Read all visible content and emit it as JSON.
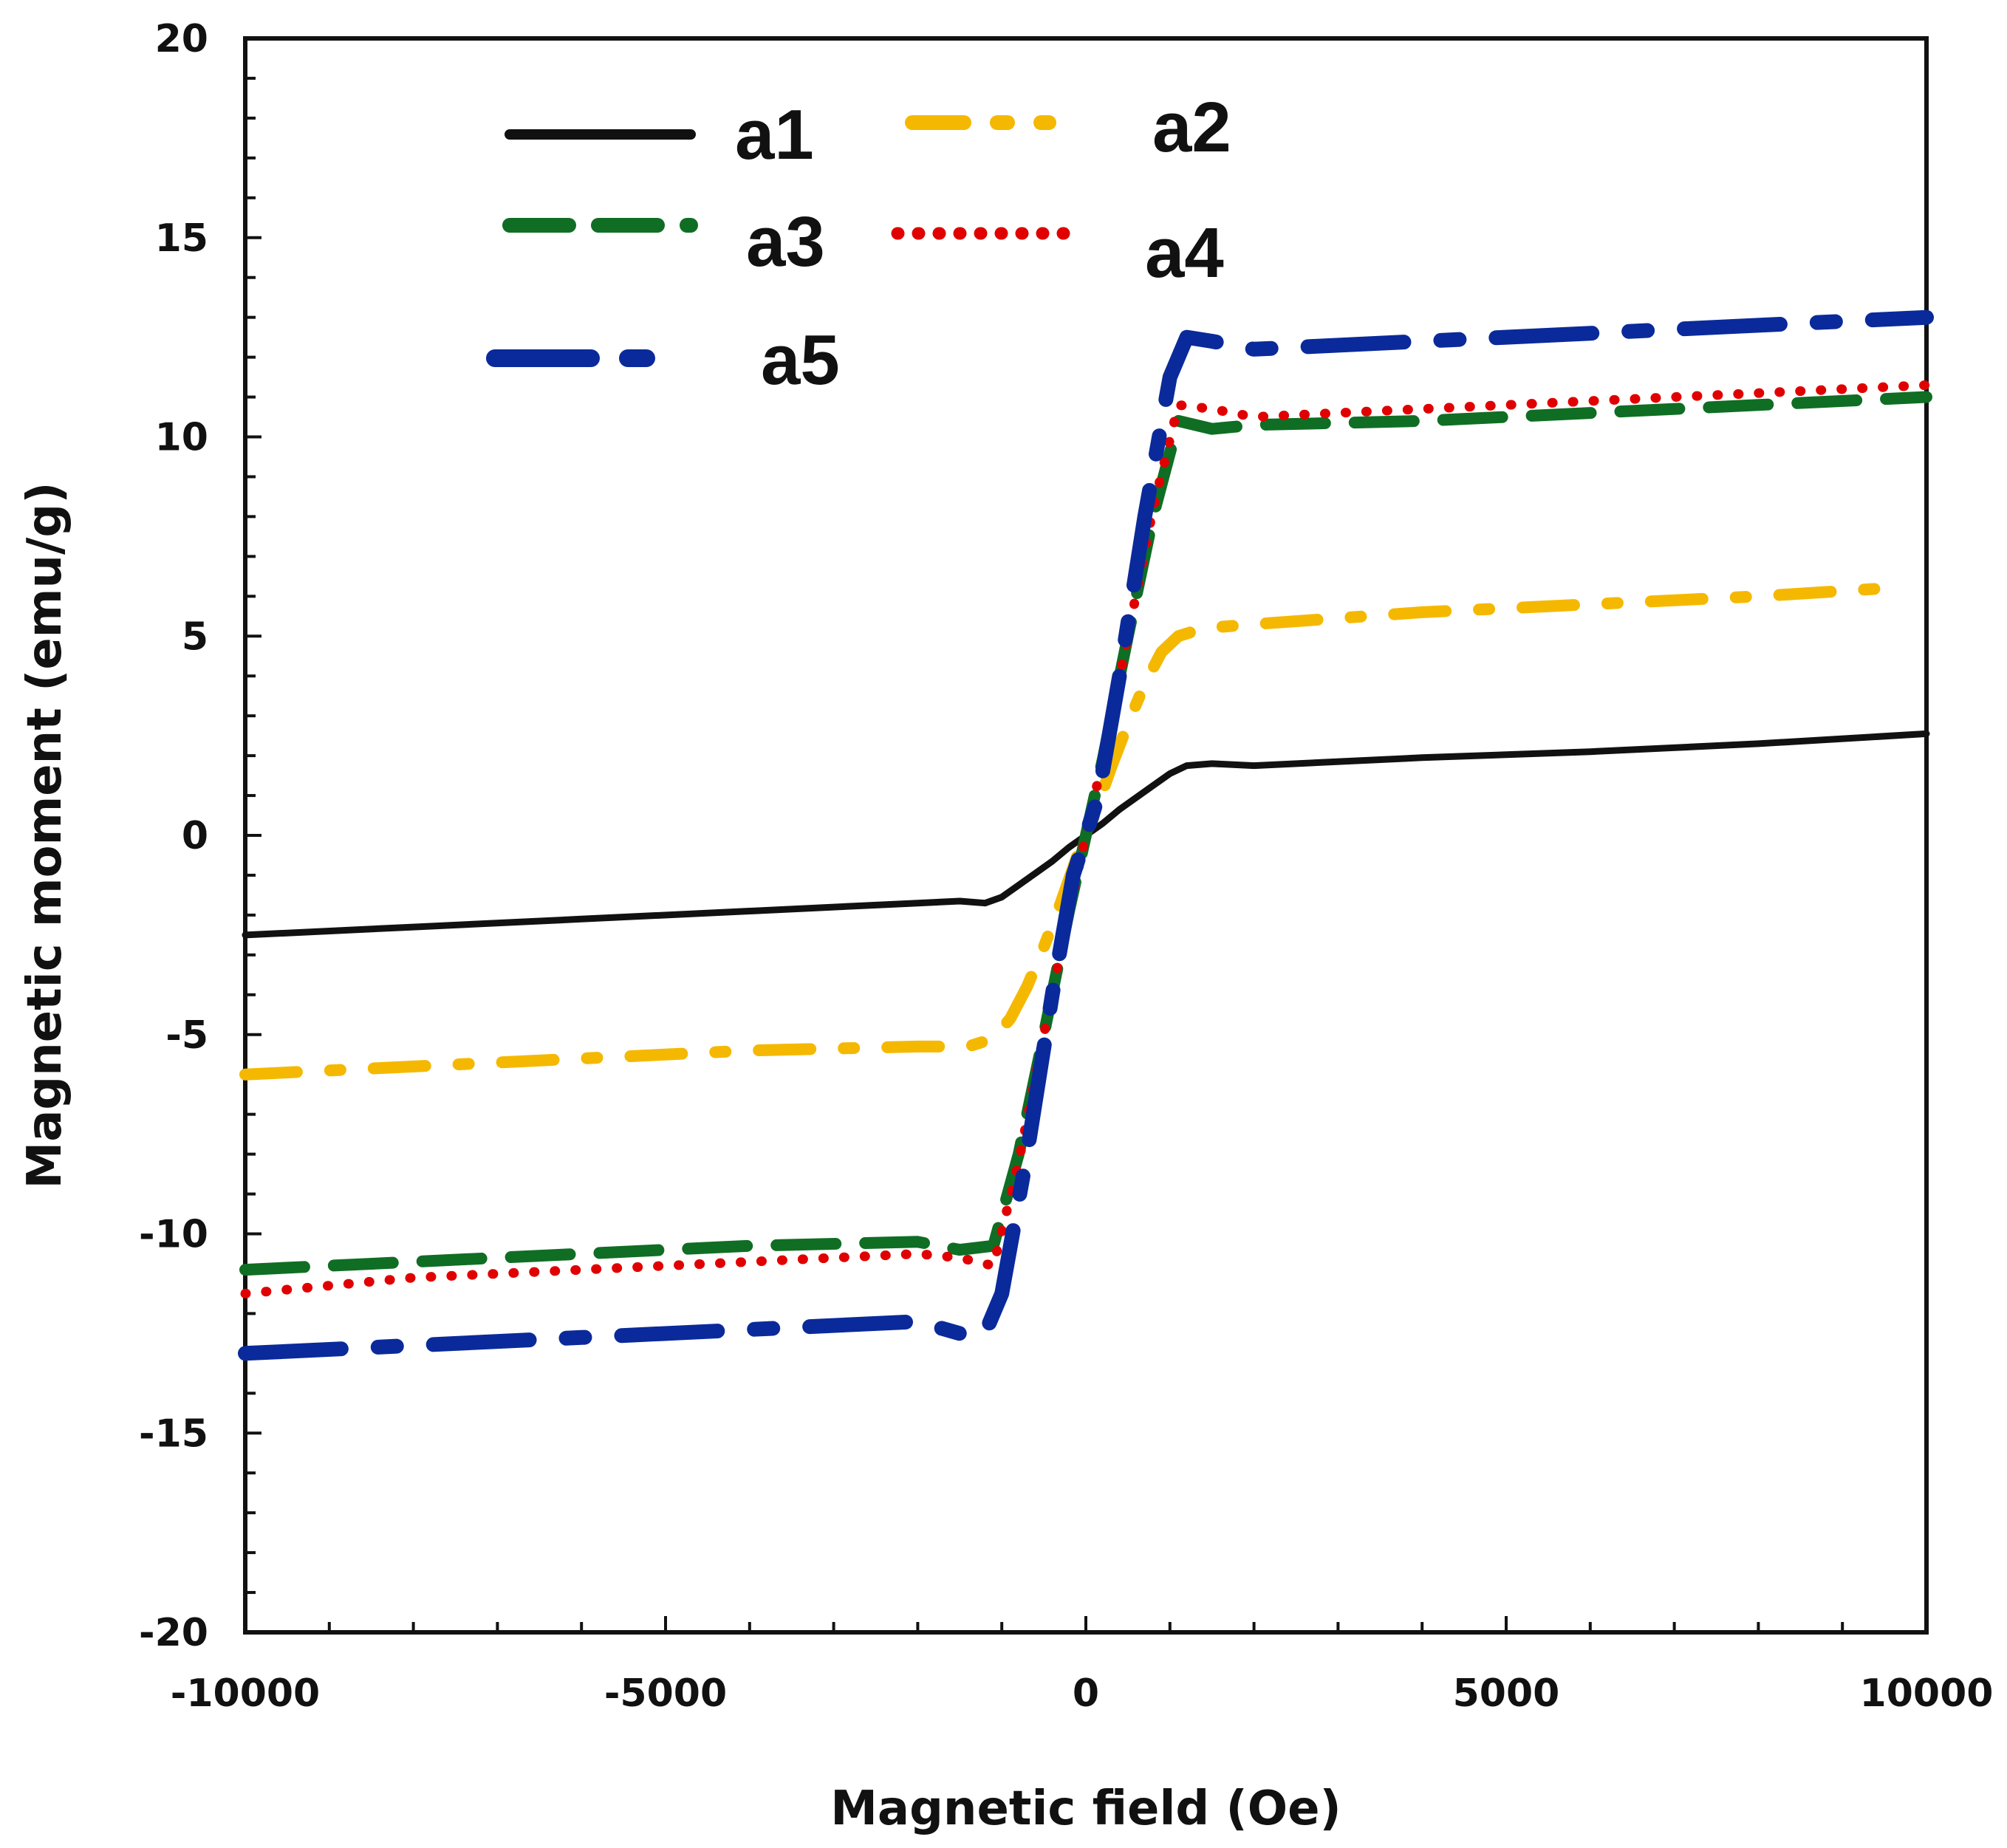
{
  "chart_data": {
    "type": "line",
    "title": "",
    "xlabel": "Magnetic field (Oe)",
    "ylabel": "Magnetic moment (emu/g)",
    "xlim": [
      -10000,
      10000
    ],
    "ylim": [
      -20,
      20
    ],
    "x_ticks": [
      -10000,
      -5000,
      0,
      5000,
      10000
    ],
    "x_tick_labels": [
      "-10000",
      "-5000",
      "0",
      "5000",
      "10000"
    ],
    "y_ticks": [
      -20,
      -15,
      -10,
      -5,
      0,
      5,
      10,
      15,
      20
    ],
    "y_tick_labels": [
      "-20",
      "-15",
      "-10",
      "-5",
      "0",
      "5",
      "10",
      "15",
      "20"
    ],
    "grid": false,
    "legend_position": "top-left",
    "series": [
      {
        "name": "a1",
        "color": "#111111",
        "style": "solid",
        "x": [
          -10000,
          -8000,
          -6000,
          -4000,
          -2000,
          -1500,
          -1200,
          -1000,
          -800,
          -600,
          -400,
          -200,
          0,
          200,
          400,
          600,
          800,
          1000,
          1200,
          1500,
          2000,
          4000,
          6000,
          8000,
          10000
        ],
        "y": [
          -2.5,
          -2.3,
          -2.1,
          -1.9,
          -1.7,
          -1.65,
          -1.7,
          -1.55,
          -1.25,
          -0.95,
          -0.65,
          -0.3,
          0.0,
          0.3,
          0.65,
          0.95,
          1.25,
          1.55,
          1.75,
          1.8,
          1.75,
          1.95,
          2.1,
          2.3,
          2.55
        ]
      },
      {
        "name": "a2",
        "color": "#F5B800",
        "style": "dashdot",
        "x": [
          -10000,
          -8000,
          -6000,
          -4000,
          -2000,
          -1400,
          -1100,
          -900,
          -700,
          -500,
          -300,
          -100,
          0,
          100,
          300,
          500,
          700,
          900,
          1100,
          1400,
          2000,
          4000,
          6000,
          8000,
          9500
        ],
        "y": [
          -6.0,
          -5.8,
          -5.6,
          -5.4,
          -5.3,
          -5.3,
          -5.1,
          -4.6,
          -3.8,
          -2.8,
          -1.7,
          -0.5,
          0.0,
          0.5,
          1.7,
          2.8,
          3.8,
          4.6,
          5.0,
          5.2,
          5.3,
          5.6,
          5.8,
          6.0,
          6.2
        ]
      },
      {
        "name": "a3",
        "color": "#0F6E24",
        "style": "dash",
        "x": [
          -10000,
          -8000,
          -6000,
          -4000,
          -2000,
          -1500,
          -1100,
          -800,
          -500,
          -200,
          0,
          200,
          500,
          800,
          1100,
          1500,
          2000,
          4000,
          6000,
          8000,
          10000
        ],
        "y": [
          -10.9,
          -10.7,
          -10.5,
          -10.3,
          -10.2,
          -10.4,
          -10.3,
          -8.0,
          -5.0,
          -1.9,
          0.0,
          1.9,
          5.0,
          8.0,
          10.4,
          10.2,
          10.3,
          10.4,
          10.6,
          10.8,
          11.0
        ]
      },
      {
        "name": "a4",
        "color": "#E00000",
        "style": "dot",
        "x": [
          -10000,
          -8000,
          -6000,
          -4000,
          -2000,
          -1500,
          -1100,
          -800,
          -500,
          -200,
          0,
          200,
          500,
          800,
          1100,
          1500,
          2000,
          4000,
          6000,
          8000,
          10000
        ],
        "y": [
          -11.5,
          -11.1,
          -10.9,
          -10.7,
          -10.5,
          -10.6,
          -10.8,
          -8.2,
          -5.0,
          -1.9,
          0.0,
          1.9,
          5.0,
          8.2,
          10.8,
          10.7,
          10.5,
          10.7,
          10.9,
          11.1,
          11.3
        ]
      },
      {
        "name": "a5",
        "color": "#0A2A9B",
        "style": "longdashdot",
        "x": [
          -10000,
          -8000,
          -6000,
          -4000,
          -2000,
          -1500,
          -1200,
          -1000,
          -700,
          -400,
          -150,
          0,
          150,
          400,
          700,
          1000,
          1200,
          1500,
          2000,
          4000,
          6000,
          8000,
          10000
        ],
        "y": [
          -13.0,
          -12.8,
          -12.6,
          -12.4,
          -12.2,
          -12.5,
          -12.5,
          -11.5,
          -8.0,
          -4.0,
          -1.0,
          0.0,
          1.0,
          4.0,
          8.0,
          11.5,
          12.5,
          12.4,
          12.2,
          12.4,
          12.6,
          12.8,
          13.0
        ]
      }
    ]
  }
}
